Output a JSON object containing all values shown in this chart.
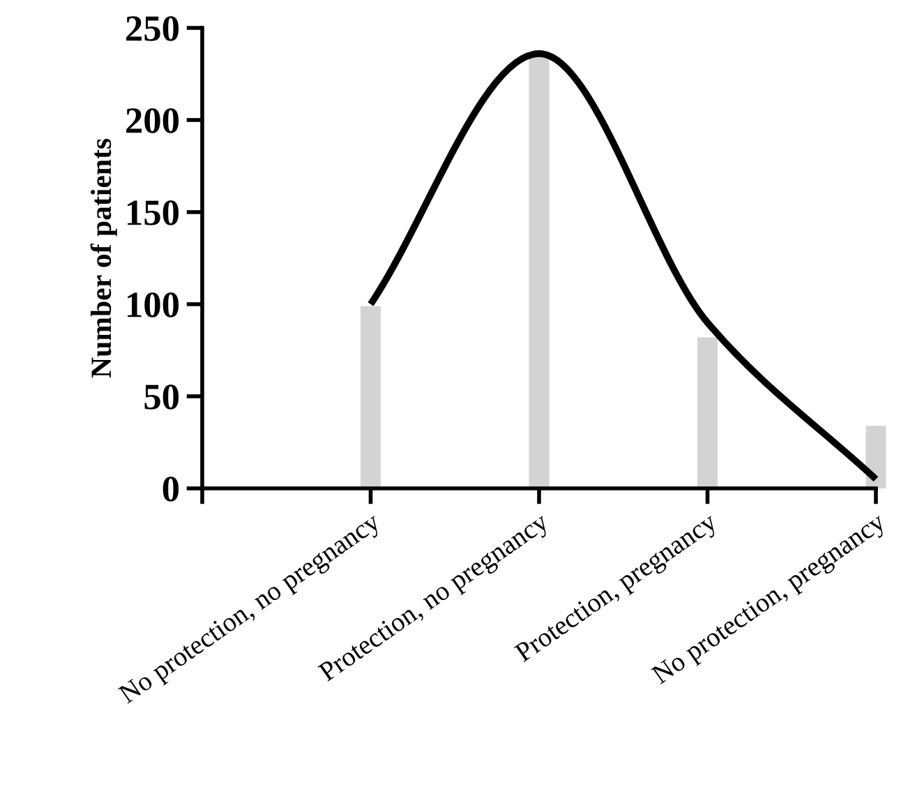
{
  "chart_data": {
    "type": "bar",
    "ylabel": "Number of patients",
    "categories": [
      null,
      "No protection, no pregnancy",
      "Protection, no pregnancy",
      "Protection, pregnancy",
      "No protection, pregnancy"
    ],
    "ylim": [
      0,
      250
    ],
    "yticks": [
      0,
      50,
      100,
      150,
      200,
      250
    ],
    "grid": false,
    "legend": false,
    "series": [
      {
        "type": "bar",
        "color": "#d3d3d3",
        "values": [
          null,
          99,
          235,
          82,
          34
        ]
      },
      {
        "type": "line",
        "color": "#000000",
        "values": [
          null,
          100,
          236,
          90,
          5
        ]
      }
    ]
  }
}
